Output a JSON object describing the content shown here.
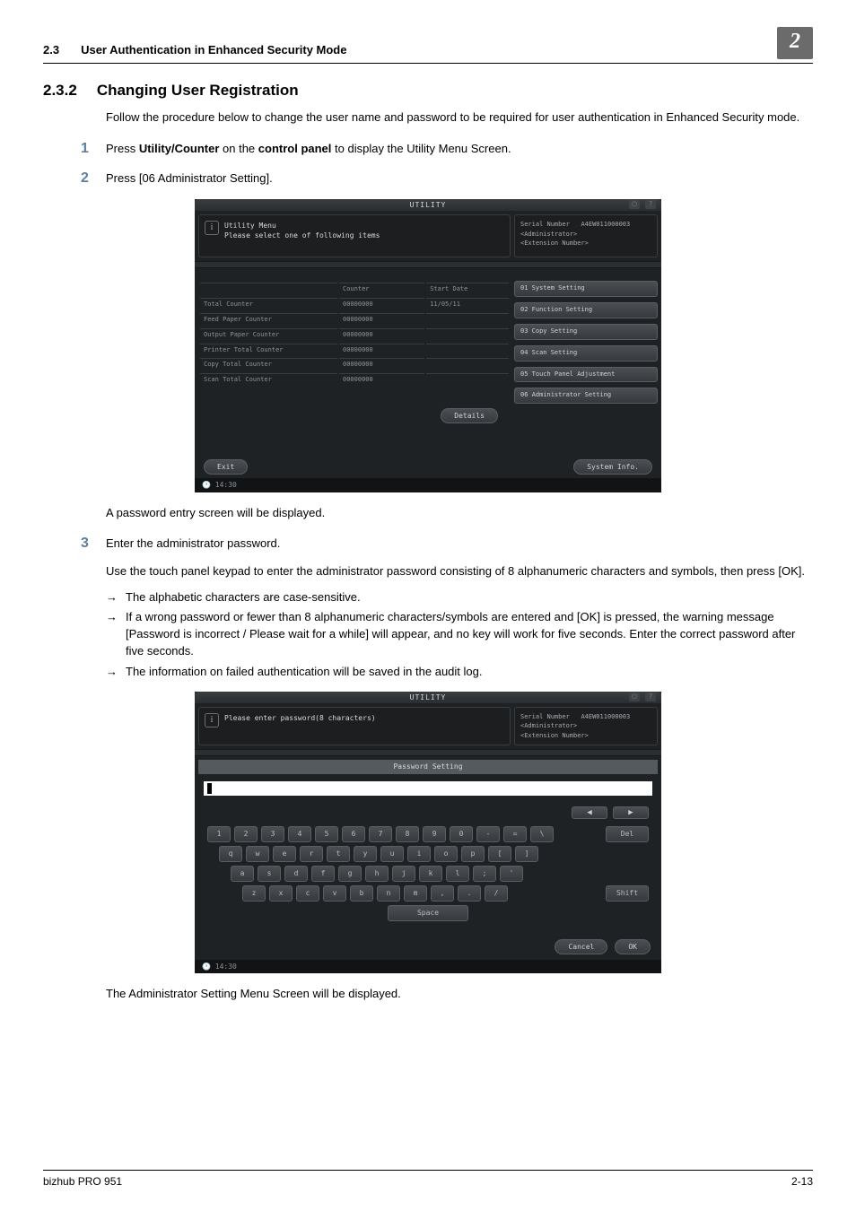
{
  "header": {
    "section_number": "2.3",
    "section_title": "User Authentication in Enhanced Security Mode",
    "chapter_badge": "2"
  },
  "subsection": {
    "number": "2.3.2",
    "title": "Changing User Registration"
  },
  "intro": "Follow the procedure below to change the user name and password to be required for user authentication in Enhanced Security mode.",
  "steps": {
    "s1": {
      "num": "1",
      "prefix": "Press ",
      "b1": "Utility/Counter",
      "mid": " on the ",
      "b2": "control panel",
      "suffix": " to display the Utility Menu Screen."
    },
    "s2": {
      "num": "2",
      "text": "Press [06 Administrator Setting]."
    },
    "after_ss1": "A password entry screen will be displayed.",
    "s3": {
      "num": "3",
      "text": "Enter the administrator password."
    },
    "s3_body": "Use the touch panel keypad to enter the administrator password consisting of 8 alphanumeric characters and symbols, then press [OK].",
    "bullets": {
      "b1": "The alphabetic characters are case-sensitive.",
      "b2": "If a wrong password or fewer than 8 alphanumeric characters/symbols are entered and [OK] is pressed, the warning message [Password is incorrect / Please wait for a while] will appear, and no key will work for five seconds. Enter the correct password after five seconds.",
      "b3": "The information on failed authentication will be saved in the audit log."
    },
    "after_ss2": "The Administrator Setting Menu Screen will be displayed."
  },
  "ss1": {
    "top_title": "UTILITY",
    "msg_l1": "Utility Menu",
    "msg_l2": "Please select one of following items",
    "info_serial_label": "Serial Number",
    "info_serial_value": "A4EW011000003",
    "info_admin": "<Administrator>",
    "info_ext": "<Extension Number>",
    "table": {
      "head_counter": "Counter",
      "head_start": "Start Date",
      "rows": [
        {
          "label": "Total Counter",
          "counter": "00000000",
          "date": "11/05/11"
        },
        {
          "label": "Feed Paper Counter",
          "counter": "00000000",
          "date": ""
        },
        {
          "label": "Output Paper Counter",
          "counter": "00000000",
          "date": ""
        },
        {
          "label": "Printer Total Counter",
          "counter": "00000000",
          "date": ""
        },
        {
          "label": "Copy Total Counter",
          "counter": "00000000",
          "date": ""
        },
        {
          "label": "Scan Total Counter",
          "counter": "00000000",
          "date": ""
        }
      ]
    },
    "menu": {
      "m1": "01 System Setting",
      "m2": "02 Function Setting",
      "m3": "03 Copy Setting",
      "m4": "04 Scan Setting",
      "m5": "05 Touch Panel Adjustment",
      "m6": "06 Administrator Setting"
    },
    "details_btn": "Details",
    "exit_btn": "Exit",
    "sysinfo_btn": "System Info.",
    "time": "14:30"
  },
  "ss2": {
    "top_title": "UTILITY",
    "msg": "Please enter password(8 characters)",
    "info_serial_label": "Serial Number",
    "info_serial_value": "A4EW011000003",
    "info_admin": "<Administrator>",
    "info_ext": "<Extension Number>",
    "pw_title": "Password Setting",
    "arrow_left": "◀",
    "arrow_right": "▶",
    "del": "Del",
    "shift": "Shift",
    "space": "Space",
    "cancel": "Cancel",
    "ok": "OK",
    "time": "14:30",
    "rows": {
      "r1": [
        "1",
        "2",
        "3",
        "4",
        "5",
        "6",
        "7",
        "8",
        "9",
        "0",
        "-",
        "=",
        "\\"
      ],
      "r2": [
        "q",
        "w",
        "e",
        "r",
        "t",
        "y",
        "u",
        "i",
        "o",
        "p",
        "[",
        "]"
      ],
      "r3": [
        "a",
        "s",
        "d",
        "f",
        "g",
        "h",
        "j",
        "k",
        "l",
        ";",
        "'"
      ],
      "r4": [
        "z",
        "x",
        "c",
        "v",
        "b",
        "n",
        "m",
        ",",
        ".",
        "/"
      ]
    }
  },
  "footer": {
    "left": "bizhub PRO 951",
    "right": "2-13"
  }
}
